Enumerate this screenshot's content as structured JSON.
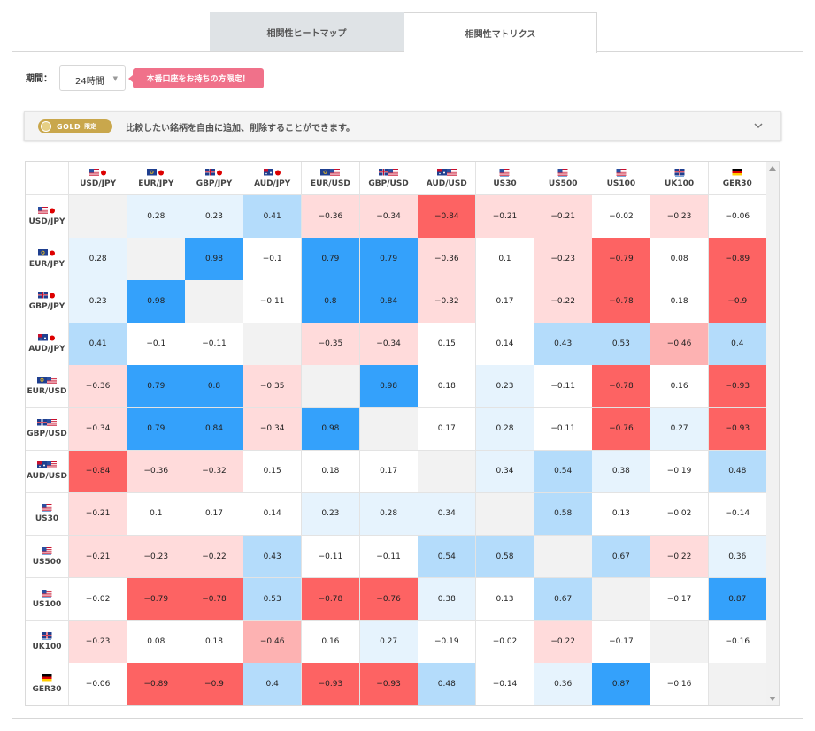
{
  "tabs": [
    {
      "label": "相関性ヒートマップ",
      "active": false
    },
    {
      "label": "相関性マトリクス",
      "active": true
    }
  ],
  "period": {
    "label": "期間：",
    "value": "24時間"
  },
  "promo_badge": "本番口座をお持ちの方限定！",
  "gold_banner": {
    "badge": "GOLD",
    "badge_sub": "限定",
    "text": "比較したい銘柄を自由に追加、削除することができます。"
  },
  "colors": {
    "strong_pos": "#34a1fb",
    "pos": "#b4dcfb",
    "weak_pos": "#e6f3fd",
    "strong_neg": "#fd6363",
    "neg": "#fdb2b2",
    "weak_neg": "#ffdbdb",
    "neutral": "#ffffff",
    "diagonal": "#f2f2f2"
  },
  "instruments": [
    {
      "name": "USD/JPY",
      "icon": "flag-us-jp-icon"
    },
    {
      "name": "EUR/JPY",
      "icon": "flag-eu-jp-icon"
    },
    {
      "name": "GBP/JPY",
      "icon": "flag-gb-jp-icon"
    },
    {
      "name": "AUD/JPY",
      "icon": "flag-au-jp-icon"
    },
    {
      "name": "EUR/USD",
      "icon": "flag-eu-us-icon"
    },
    {
      "name": "GBP/USD",
      "icon": "flag-gb-us-icon"
    },
    {
      "name": "AUD/USD",
      "icon": "flag-au-us-icon"
    },
    {
      "name": "US30",
      "icon": "flag-us-index-icon"
    },
    {
      "name": "US500",
      "icon": "flag-us-index-icon"
    },
    {
      "name": "US100",
      "icon": "flag-us-index-icon"
    },
    {
      "name": "UK100",
      "icon": "flag-gb-index-icon"
    },
    {
      "name": "GER30",
      "icon": "flag-de-icon"
    }
  ],
  "matrix": [
    [
      null,
      0.28,
      0.23,
      0.41,
      -0.36,
      -0.34,
      -0.84,
      -0.21,
      -0.21,
      -0.02,
      -0.23,
      -0.06
    ],
    [
      0.28,
      null,
      0.98,
      -0.1,
      0.79,
      0.79,
      -0.36,
      0.1,
      -0.23,
      -0.79,
      0.08,
      -0.89
    ],
    [
      0.23,
      0.98,
      null,
      -0.11,
      0.8,
      0.84,
      -0.32,
      0.17,
      -0.22,
      -0.78,
      0.18,
      -0.9
    ],
    [
      0.41,
      -0.1,
      -0.11,
      null,
      -0.35,
      -0.34,
      0.15,
      0.14,
      0.43,
      0.53,
      -0.46,
      0.4
    ],
    [
      -0.36,
      0.79,
      0.8,
      -0.35,
      null,
      0.98,
      0.18,
      0.23,
      -0.11,
      -0.78,
      0.16,
      -0.93
    ],
    [
      -0.34,
      0.79,
      0.84,
      -0.34,
      0.98,
      null,
      0.17,
      0.28,
      -0.11,
      -0.76,
      0.27,
      -0.93
    ],
    [
      -0.84,
      -0.36,
      -0.32,
      0.15,
      0.18,
      0.17,
      null,
      0.34,
      0.54,
      0.38,
      -0.19,
      0.48
    ],
    [
      -0.21,
      0.1,
      0.17,
      0.14,
      0.23,
      0.28,
      0.34,
      null,
      0.58,
      0.13,
      -0.02,
      -0.14
    ],
    [
      -0.21,
      -0.23,
      -0.22,
      0.43,
      -0.11,
      -0.11,
      0.54,
      0.58,
      null,
      0.67,
      -0.22,
      0.36
    ],
    [
      -0.02,
      -0.79,
      -0.78,
      0.53,
      -0.78,
      -0.76,
      0.38,
      0.13,
      0.67,
      null,
      -0.17,
      0.87
    ],
    [
      -0.23,
      0.08,
      0.18,
      -0.46,
      0.16,
      0.27,
      -0.19,
      -0.02,
      -0.22,
      -0.17,
      null,
      -0.16
    ],
    [
      -0.06,
      -0.89,
      -0.9,
      0.4,
      -0.93,
      -0.93,
      0.48,
      -0.14,
      0.36,
      0.87,
      -0.16,
      null
    ]
  ]
}
